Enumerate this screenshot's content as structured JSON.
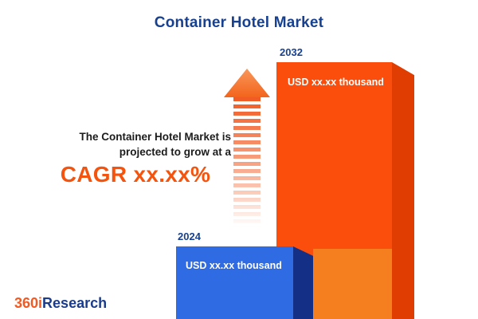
{
  "title": "Container Hotel Market",
  "description": {
    "line1": "The Container Hotel Market is",
    "line2": "projected to grow at a",
    "cagr": "CAGR xx.xx%"
  },
  "bars": {
    "y2024": {
      "year": "2024",
      "value": "USD xx.xx thousand"
    },
    "y2032": {
      "year": "2032",
      "value": "USD xx.xx thousand"
    }
  },
  "logo": {
    "part1": "360i",
    "part2": "Research"
  },
  "colors": {
    "accent_orange": "#F4540E",
    "orange_bar_front": "#FB4E0C",
    "orange_bar_side": "#DF3D02",
    "blue_bar_front": "#2F6BE3",
    "blue_bar_side": "#132F86",
    "navy_text": "#17418F"
  },
  "chart_data": {
    "type": "bar",
    "title": "Container Hotel Market",
    "categories": [
      "2024",
      "2032"
    ],
    "values": [
      "xx.xx",
      "xx.xx"
    ],
    "unit": "USD thousand",
    "value_labels": [
      "USD xx.xx thousand",
      "USD xx.xx thousand"
    ],
    "legend": "none",
    "grid": false,
    "annotation": "The Container Hotel Market is projected to grow at a CAGR xx.xx%"
  }
}
